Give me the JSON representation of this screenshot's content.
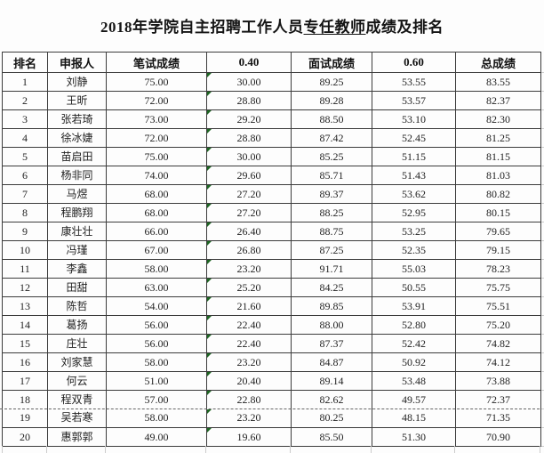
{
  "title": {
    "prefix": "2018年学院自主招聘工作人员",
    "underlined": "专任教师",
    "suffix": "成绩及排名"
  },
  "table": {
    "columns": [
      {
        "key": "rank",
        "label": "排名"
      },
      {
        "key": "applicant",
        "label": "申报人"
      },
      {
        "key": "written_score",
        "label": "笔试成绩"
      },
      {
        "key": "weight_040",
        "label": "0.40"
      },
      {
        "key": "interview_score",
        "label": "面试成绩"
      },
      {
        "key": "weight_060",
        "label": "0.60"
      },
      {
        "key": "total_score",
        "label": "总成绩"
      }
    ],
    "rows": [
      [
        "1",
        "刘静",
        "75.00",
        "30.00",
        "89.25",
        "53.55",
        "83.55"
      ],
      [
        "2",
        "王昕",
        "72.00",
        "28.80",
        "89.28",
        "53.57",
        "82.37"
      ],
      [
        "3",
        "张若琦",
        "73.00",
        "29.20",
        "88.50",
        "53.10",
        "82.30"
      ],
      [
        "4",
        "徐冰婕",
        "72.00",
        "28.80",
        "87.42",
        "52.45",
        "81.25"
      ],
      [
        "5",
        "苗启田",
        "75.00",
        "30.00",
        "85.25",
        "51.15",
        "81.15"
      ],
      [
        "6",
        "杨非同",
        "74.00",
        "29.60",
        "85.71",
        "51.43",
        "81.03"
      ],
      [
        "7",
        "马煜",
        "68.00",
        "27.20",
        "89.37",
        "53.62",
        "80.82"
      ],
      [
        "8",
        "程鹏翔",
        "68.00",
        "27.20",
        "88.25",
        "52.95",
        "80.15"
      ],
      [
        "9",
        "康壮壮",
        "66.00",
        "26.40",
        "88.75",
        "53.25",
        "79.65"
      ],
      [
        "10",
        "冯瑾",
        "67.00",
        "26.80",
        "87.25",
        "52.35",
        "79.15"
      ],
      [
        "11",
        "李鑫",
        "58.00",
        "23.20",
        "91.71",
        "55.03",
        "78.23"
      ],
      [
        "12",
        "田甜",
        "63.00",
        "25.20",
        "84.25",
        "50.55",
        "75.75"
      ],
      [
        "13",
        "陈哲",
        "54.00",
        "21.60",
        "89.85",
        "53.91",
        "75.51"
      ],
      [
        "14",
        "葛扬",
        "56.00",
        "22.40",
        "88.00",
        "52.80",
        "75.20"
      ],
      [
        "15",
        "庄壮",
        "56.00",
        "22.40",
        "87.37",
        "52.42",
        "74.82"
      ],
      [
        "16",
        "刘家慧",
        "58.00",
        "23.20",
        "84.87",
        "50.92",
        "74.12"
      ],
      [
        "17",
        "何云",
        "51.00",
        "20.40",
        "89.14",
        "53.48",
        "73.88"
      ],
      [
        "18",
        "程双青",
        "57.00",
        "22.80",
        "82.62",
        "49.57",
        "72.37"
      ],
      [
        "19",
        "吴若寒",
        "58.00",
        "23.20",
        "80.25",
        "48.15",
        "71.35"
      ],
      [
        "20",
        "惠郭郭",
        "49.00",
        "19.60",
        "85.50",
        "51.30",
        "70.90"
      ]
    ],
    "error_flag_column_index": 3,
    "page_break_after_row": 18
  },
  "colors": {
    "error_triangle": "#1e6623",
    "table_border": "#3c3c3c",
    "page_break_dash": "#666666",
    "faint_gridline": "#cccccc",
    "text": "#222222"
  }
}
